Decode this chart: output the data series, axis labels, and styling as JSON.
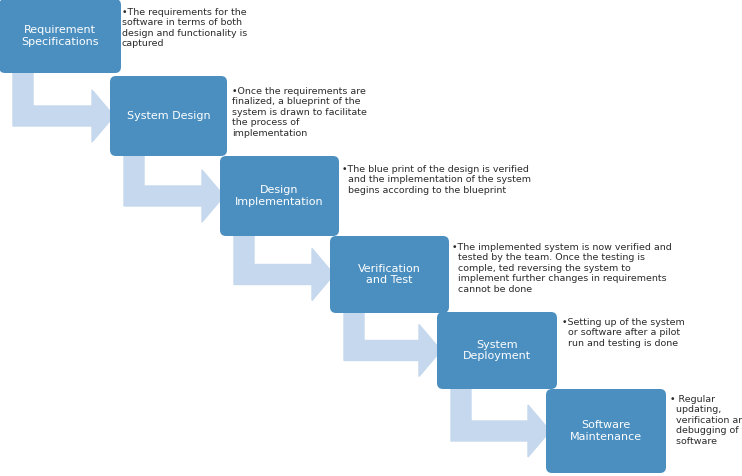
{
  "steps": [
    {
      "label": "Requirement\nSpecifications",
      "desc": "•The requirements for the\nsoftware in terms of both\ndesign and functionality is\ncaptured"
    },
    {
      "label": "System Design",
      "desc": "•Once the requirements are\nfinalized, a blueprint of the\nsystem is drawn to facilitate\nthe process of\nimplementation"
    },
    {
      "label": "Design\nImplementation",
      "desc": "•The blue print of the design is verified\n  and the implementation of the system\n  begins according to the blueprint"
    },
    {
      "label": "Verification\nand Test",
      "desc": "•The implemented system is now verified and\n  tested by the team. Once the testing is\n  comple, ted reversing the system to\n  implement further changes in requirements\n  cannot be done"
    },
    {
      "label": "System\nDeployment",
      "desc": "•Setting up of the system\n  or software after a pilot\n  run and testing is done"
    },
    {
      "label": "Software\nMaintenance",
      "desc": "• Regular\n  updating,\n  verification and\n  debugging of the\n  software"
    }
  ],
  "box_color": "#4A8FC0",
  "arrow_color": "#C5D8ED",
  "text_color_box": "#FFFFFF",
  "text_color_desc": "#2B2B2B",
  "bg_color": "#FFFFFF",
  "fig_w": 7.42,
  "fig_h": 4.76,
  "dpi": 100
}
